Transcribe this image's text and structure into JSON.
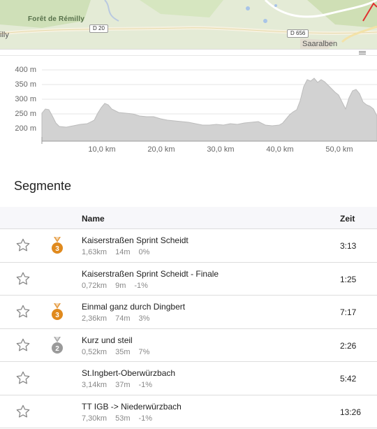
{
  "map": {
    "forest_label": "Forêt de Rémilly",
    "left_label": "illy",
    "city_label": "Saaralben",
    "roads": [
      "D 20",
      "D 656"
    ]
  },
  "elevation": {
    "y_ticks": [
      "400 m",
      "350 m",
      "300 m",
      "250 m",
      "200 m"
    ],
    "x_ticks": [
      "10,0 km",
      "20,0 km",
      "30,0 km",
      "40,0 km",
      "50,0 km"
    ],
    "fill_color": "#d2d2d2"
  },
  "segments": {
    "title": "Segmente",
    "header": {
      "name": "Name",
      "time": "Zeit"
    },
    "rows": [
      {
        "name": "Kaiserstraßen Sprint Scheidt",
        "distance": "1,63km",
        "elevation": "14m",
        "grade": "0%",
        "time": "3:13",
        "medal": "3"
      },
      {
        "name": "Kaiserstraßen Sprint Scheidt - Finale",
        "distance": "0,72km",
        "elevation": "9m",
        "grade": "-1%",
        "time": "1:25",
        "medal": ""
      },
      {
        "name": "Einmal ganz durch Dingbert",
        "distance": "2,36km",
        "elevation": "74m",
        "grade": "3%",
        "time": "7:17",
        "medal": "3"
      },
      {
        "name": "Kurz und steil",
        "distance": "0,52km",
        "elevation": "35m",
        "grade": "7%",
        "time": "2:26",
        "medal": "2"
      },
      {
        "name": "St.Ingbert-Oberwürzbach",
        "distance": "3,14km",
        "elevation": "37m",
        "grade": "-1%",
        "time": "5:42",
        "medal": ""
      },
      {
        "name": "TT IGB -> Niederwürzbach",
        "distance": "7,30km",
        "elevation": "53m",
        "grade": "-1%",
        "time": "13:26",
        "medal": ""
      }
    ]
  }
}
